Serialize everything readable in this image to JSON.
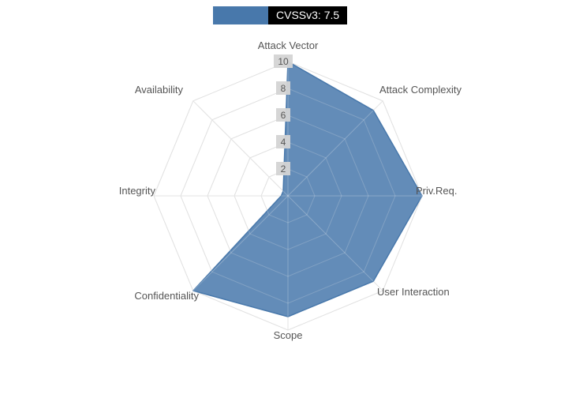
{
  "chart_data": {
    "type": "radar",
    "legend": {
      "label": "CVSSv3: 7.5",
      "swatch_color": "#4878ab",
      "label_bg": "#000000",
      "label_color": "#ffffff"
    },
    "axes": [
      "Attack Vector",
      "Attack Complexity",
      "Priv.Req.",
      "User Interaction",
      "Scope",
      "Confidentiality",
      "Integrity",
      "Availability"
    ],
    "values": [
      10,
      9,
      10,
      9,
      9,
      10,
      0.5,
      0.5
    ],
    "ticks": [
      2,
      4,
      6,
      8,
      10
    ],
    "rmax": 10,
    "fill_color": "#4878ab",
    "fill_opacity": 0.85,
    "grid_color": "#d9d9d9",
    "axis_label_color": "#555555",
    "tick_bg": "#d4d4d4",
    "tick_color": "#555555"
  }
}
